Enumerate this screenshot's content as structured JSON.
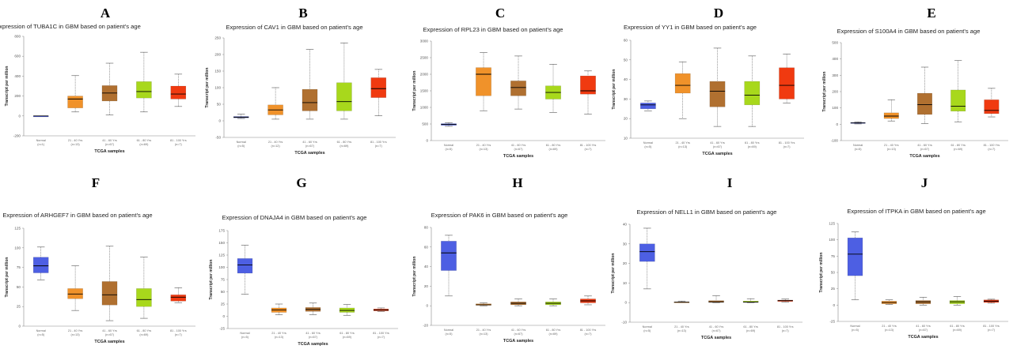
{
  "categories": [
    "Normal",
    "21 - 40 Yrs",
    "41 - 60 Yrs",
    "61 - 80 Yrs",
    "81 - 100 Yrs"
  ],
  "colors": {
    "normal": "#4d5fe3",
    "g21": "#f0922a",
    "g41": "#b07030",
    "g61": "#a8d81c",
    "g81": "#f03a10",
    "median": "#000000",
    "whisker": "#555555"
  },
  "chart_data": [
    {
      "letter": "A",
      "type": "box",
      "title": "Expression of TUBA1C in GBM based on patient's age",
      "xlabel": "TCGA samples",
      "ylabel": "Transcript per million",
      "ylim": [
        -200,
        800
      ],
      "yticks": [
        -200,
        0,
        200,
        400,
        600,
        800
      ],
      "counts": [
        "(n=1)",
        "(n=13)",
        "(n=67)",
        "(n=69)",
        "(n=7)"
      ],
      "series": [
        {
          "category": "Normal",
          "min": 0,
          "q1": 0,
          "median": 0,
          "q3": 0,
          "max": 0
        },
        {
          "category": "21 - 40 Yrs",
          "min": 40,
          "q1": 80,
          "median": 170,
          "q3": 200,
          "max": 405
        },
        {
          "category": "41 - 60 Yrs",
          "min": 10,
          "q1": 150,
          "median": 230,
          "q3": 305,
          "max": 530
        },
        {
          "category": "61 - 80 Yrs",
          "min": 40,
          "q1": 180,
          "median": 245,
          "q3": 345,
          "max": 640
        },
        {
          "category": "81 - 100 Yrs",
          "min": 95,
          "q1": 170,
          "median": 220,
          "q3": 300,
          "max": 420
        }
      ]
    },
    {
      "letter": "B",
      "type": "box",
      "title": "Expression of CAV1 in GBM based on patient's age",
      "xlabel": "TCGA samples",
      "ylabel": "Transcript per million",
      "ylim": [
        -50,
        250
      ],
      "yticks": [
        -50,
        0,
        50,
        100,
        150,
        200,
        250
      ],
      "counts": [
        "(n=5)",
        "(n=12)",
        "(n=67)",
        "(n=69)",
        "(n=7)"
      ],
      "series": [
        {
          "category": "Normal",
          "min": 7,
          "q1": 9,
          "median": 11,
          "q3": 13,
          "max": 20
        },
        {
          "category": "21 - 40 Yrs",
          "min": 5,
          "q1": 18,
          "median": 33,
          "q3": 48,
          "max": 100
        },
        {
          "category": "41 - 60 Yrs",
          "min": 5,
          "q1": 30,
          "median": 55,
          "q3": 95,
          "max": 215
        },
        {
          "category": "61 - 80 Yrs",
          "min": 5,
          "q1": 30,
          "median": 58,
          "q3": 115,
          "max": 235
        },
        {
          "category": "81 - 100 Yrs",
          "min": 15,
          "q1": 70,
          "median": 97,
          "q3": 130,
          "max": 155
        }
      ]
    },
    {
      "letter": "C",
      "type": "box",
      "title": "Expression of RPL23 in GBM based on patient's age",
      "xlabel": "TCGA samples",
      "ylabel": "Transcript per million",
      "ylim": [
        0,
        3000
      ],
      "yticks": [
        0,
        500,
        1000,
        1500,
        2000,
        2500,
        3000
      ],
      "counts": [
        "(n=5)",
        "(n=13)",
        "(n=67)",
        "(n=69)",
        "(n=7)"
      ],
      "series": [
        {
          "category": "Normal",
          "min": 430,
          "q1": 460,
          "median": 490,
          "q3": 510,
          "max": 540
        },
        {
          "category": "21 - 40 Yrs",
          "min": 900,
          "q1": 1350,
          "median": 2000,
          "q3": 2200,
          "max": 2650
        },
        {
          "category": "41 - 60 Yrs",
          "min": 950,
          "q1": 1350,
          "median": 1600,
          "q3": 1800,
          "max": 2550
        },
        {
          "category": "61 - 80 Yrs",
          "min": 850,
          "q1": 1250,
          "median": 1450,
          "q3": 1650,
          "max": 2300
        },
        {
          "category": "81 - 100 Yrs",
          "min": 800,
          "q1": 1400,
          "median": 1500,
          "q3": 1950,
          "max": 2100
        }
      ]
    },
    {
      "letter": "D",
      "type": "box",
      "title": "Expression of YY1 in GBM based on patient's age",
      "xlabel": "TCGA samples",
      "ylabel": "Transcript per million",
      "ylim": [
        10,
        60
      ],
      "yticks": [
        10,
        20,
        30,
        40,
        50,
        60
      ],
      "counts": [
        "(n=5)",
        "(n=13)",
        "(n=67)",
        "(n=69)",
        "(n=7)"
      ],
      "series": [
        {
          "category": "Normal",
          "min": 24,
          "q1": 25,
          "median": 27,
          "q3": 28,
          "max": 29
        },
        {
          "category": "21 - 40 Yrs",
          "min": 20,
          "q1": 33,
          "median": 37,
          "q3": 43,
          "max": 49
        },
        {
          "category": "41 - 60 Yrs",
          "min": 16,
          "q1": 26,
          "median": 34,
          "q3": 39,
          "max": 56
        },
        {
          "category": "61 - 80 Yrs",
          "min": 16,
          "q1": 27,
          "median": 32,
          "q3": 39,
          "max": 52
        },
        {
          "category": "81 - 100 Yrs",
          "min": 28,
          "q1": 30,
          "median": 37,
          "q3": 46,
          "max": 53
        }
      ]
    },
    {
      "letter": "E",
      "type": "box",
      "title": "Expression of S100A4 in GBM based on patient's age",
      "xlabel": "TCGA samples",
      "ylabel": "Transcript per million",
      "ylim": [
        -100,
        500
      ],
      "yticks": [
        -100,
        0,
        100,
        200,
        300,
        400,
        500
      ],
      "counts": [
        "(n=5)",
        "(n=13)",
        "(n=67)",
        "(n=69)",
        "(n=7)"
      ],
      "series": [
        {
          "category": "Normal",
          "min": 2,
          "q1": 5,
          "median": 8,
          "q3": 11,
          "max": 15
        },
        {
          "category": "21 - 40 Yrs",
          "min": 20,
          "q1": 35,
          "median": 50,
          "q3": 70,
          "max": 150
        },
        {
          "category": "41 - 60 Yrs",
          "min": 5,
          "q1": 60,
          "median": 120,
          "q3": 190,
          "max": 350
        },
        {
          "category": "61 - 80 Yrs",
          "min": 15,
          "q1": 80,
          "median": 110,
          "q3": 210,
          "max": 390
        },
        {
          "category": "81 - 100 Yrs",
          "min": 45,
          "q1": 65,
          "median": 85,
          "q3": 150,
          "max": 220
        }
      ]
    },
    {
      "letter": "F",
      "type": "box",
      "title": "Expression of ARHGEF7 in GBM based on patient's age",
      "xlabel": "TCGA samples",
      "ylabel": "Transcript per million",
      "ylim": [
        0,
        125
      ],
      "yticks": [
        0,
        25,
        50,
        75,
        100,
        125
      ],
      "counts": [
        "(n=5)",
        "(n=13)",
        "(n=67)",
        "(n=69)",
        "(n=7)"
      ],
      "series": [
        {
          "category": "Normal",
          "min": 59,
          "q1": 68,
          "median": 77,
          "q3": 88,
          "max": 101
        },
        {
          "category": "21 - 40 Yrs",
          "min": 20,
          "q1": 35,
          "median": 41,
          "q3": 48,
          "max": 77
        },
        {
          "category": "41 - 60 Yrs",
          "min": 7,
          "q1": 27,
          "median": 40,
          "q3": 57,
          "max": 102
        },
        {
          "category": "61 - 80 Yrs",
          "min": 10,
          "q1": 25,
          "median": 34,
          "q3": 48,
          "max": 88
        },
        {
          "category": "81 - 100 Yrs",
          "min": 30,
          "q1": 32,
          "median": 37,
          "q3": 40,
          "max": 49
        }
      ]
    },
    {
      "letter": "G",
      "type": "box",
      "title": "Expression of DNAJA4 in GBM based on patient's age",
      "xlabel": "TCGA samples",
      "ylabel": "Transcript per million",
      "ylim": [
        -25,
        175
      ],
      "yticks": [
        -25,
        0,
        25,
        50,
        75,
        100,
        125,
        150,
        175
      ],
      "counts": [
        "(n=5)",
        "(n=13)",
        "(n=67)",
        "(n=69)",
        "(n=7)"
      ],
      "series": [
        {
          "category": "Normal",
          "min": 45,
          "q1": 88,
          "median": 105,
          "q3": 118,
          "max": 145
        },
        {
          "category": "21 - 40 Yrs",
          "min": 3,
          "q1": 8,
          "median": 13,
          "q3": 17,
          "max": 25
        },
        {
          "category": "41 - 60 Yrs",
          "min": 3,
          "q1": 10,
          "median": 14,
          "q3": 18,
          "max": 27
        },
        {
          "category": "61 - 80 Yrs",
          "min": 2,
          "q1": 8,
          "median": 12,
          "q3": 17,
          "max": 24
        },
        {
          "category": "81 - 100 Yrs",
          "min": 10,
          "q1": 11,
          "median": 13,
          "q3": 15,
          "max": 17
        }
      ]
    },
    {
      "letter": "H",
      "type": "box",
      "title": "Expression of PAK6 in GBM based on patient's age",
      "xlabel": "TCGA samples",
      "ylabel": "Transcript per million",
      "ylim": [
        -20,
        80
      ],
      "yticks": [
        -20,
        0,
        20,
        40,
        60,
        80
      ],
      "counts": [
        "(n=5)",
        "(n=13)",
        "(n=67)",
        "(n=69)",
        "(n=7)"
      ],
      "series": [
        {
          "category": "Normal",
          "min": 10,
          "q1": 36,
          "median": 54,
          "q3": 66,
          "max": 72
        },
        {
          "category": "21 - 40 Yrs",
          "min": 0,
          "q1": 0.5,
          "median": 1,
          "q3": 2,
          "max": 3
        },
        {
          "category": "41 - 60 Yrs",
          "min": 0,
          "q1": 1,
          "median": 2.5,
          "q3": 4,
          "max": 7
        },
        {
          "category": "61 - 80 Yrs",
          "min": 0,
          "q1": 1,
          "median": 2.5,
          "q3": 4,
          "max": 7
        },
        {
          "category": "81 - 100 Yrs",
          "min": 1,
          "q1": 3,
          "median": 5,
          "q3": 7,
          "max": 10
        }
      ]
    },
    {
      "letter": "I",
      "type": "box",
      "title": "Expression of NELL1 in GBM based on patient's age",
      "xlabel": "TCGA samples",
      "ylabel": "Transcript per million",
      "ylim": [
        -10,
        40
      ],
      "yticks": [
        -10,
        0,
        10,
        20,
        30,
        40
      ],
      "counts": [
        "(n=5)",
        "(n=13)",
        "(n=67)",
        "(n=69)",
        "(n=7)"
      ],
      "series": [
        {
          "category": "Normal",
          "min": 7,
          "q1": 21,
          "median": 26,
          "q3": 30,
          "max": 38
        },
        {
          "category": "21 - 40 Yrs",
          "min": 0,
          "q1": 0,
          "median": 0.2,
          "q3": 0.4,
          "max": 0.8
        },
        {
          "category": "41 - 60 Yrs",
          "min": 0,
          "q1": 0.1,
          "median": 0.4,
          "q3": 1,
          "max": 3.5
        },
        {
          "category": "61 - 80 Yrs",
          "min": 0,
          "q1": 0.1,
          "median": 0.3,
          "q3": 0.8,
          "max": 2
        },
        {
          "category": "81 - 100 Yrs",
          "min": 0.3,
          "q1": 0.6,
          "median": 1,
          "q3": 1.3,
          "max": 1.8
        }
      ]
    },
    {
      "letter": "J",
      "type": "box",
      "title": "Expression of ITPKA in GBM based on patient's age",
      "xlabel": "TCGA samples",
      "ylabel": "Transcript per million",
      "ylim": [
        -25,
        125
      ],
      "yticks": [
        -25,
        0,
        25,
        50,
        75,
        100,
        125
      ],
      "counts": [
        "(n=5)",
        "(n=13)",
        "(n=67)",
        "(n=69)",
        "(n=7)"
      ],
      "series": [
        {
          "category": "Normal",
          "min": 8,
          "q1": 45,
          "median": 78,
          "q3": 103,
          "max": 112
        },
        {
          "category": "21 - 40 Yrs",
          "min": 1,
          "q1": 2,
          "median": 4,
          "q3": 6,
          "max": 8
        },
        {
          "category": "41 - 60 Yrs",
          "min": 0,
          "q1": 2,
          "median": 5,
          "q3": 7,
          "max": 12
        },
        {
          "category": "61 - 80 Yrs",
          "min": 0,
          "q1": 2,
          "median": 5,
          "q3": 7,
          "max": 13
        },
        {
          "category": "81 - 100 Yrs",
          "min": 3,
          "q1": 4,
          "median": 6,
          "q3": 8,
          "max": 9
        }
      ]
    }
  ]
}
